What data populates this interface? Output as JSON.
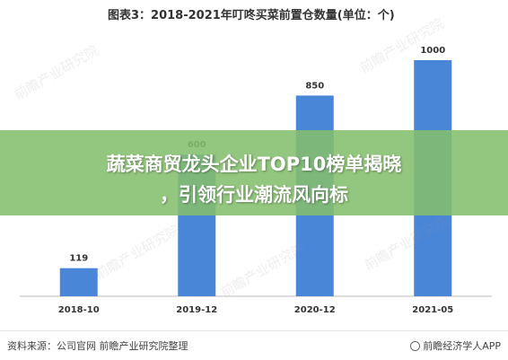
{
  "chart_data": {
    "type": "bar",
    "title": "图表3：2018-2021年叮咚买菜前置仓数量(单位：个)",
    "categories": [
      "2018-10",
      "2019-12",
      "2020-12",
      "2021-05"
    ],
    "values": [
      119,
      600,
      850,
      1000
    ],
    "ylim": [
      0,
      1000
    ],
    "grid": false,
    "colors": {
      "bar": "#4a86d8"
    }
  },
  "banner": {
    "line1": "蔬菜商贸龙头企业TOP10榜单揭晓",
    "line2": "，引领行业潮流风向标"
  },
  "footer": {
    "source": "资料来源：公司官网 前瞻产业研究院整理",
    "brand": "前瞻经济学人APP"
  },
  "watermark": "前瞻产业研究院"
}
